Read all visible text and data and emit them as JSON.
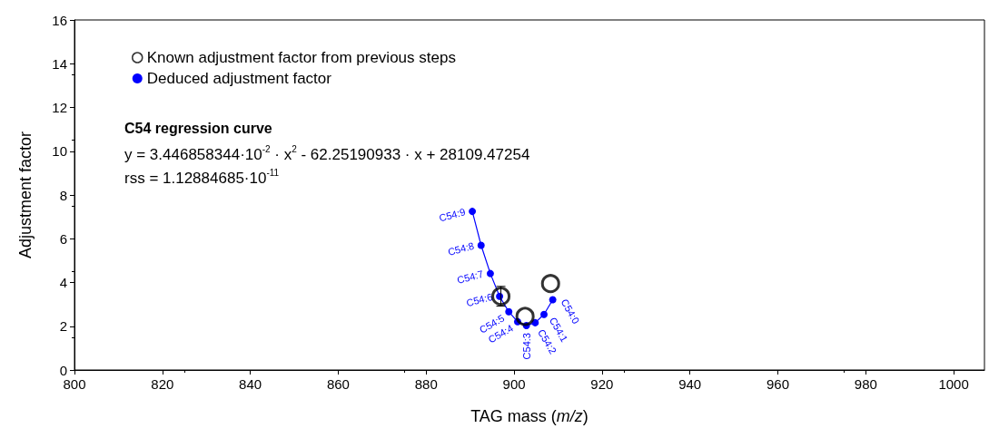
{
  "chart_data": {
    "type": "scatter",
    "xlabel": "TAG mass (m/z)",
    "ylabel": "Adjustment factor",
    "xlim": [
      800,
      1007
    ],
    "xticks": [
      800,
      820,
      840,
      860,
      880,
      900,
      920,
      940,
      960,
      980,
      1000
    ],
    "ylim": [
      0,
      16
    ],
    "yticks": [
      0,
      2,
      4,
      6,
      8,
      10,
      12,
      14,
      16
    ],
    "grid": false,
    "legend": "top left",
    "annotations": [
      "C54 regression curve",
      "y = 3.446858344·10$^{-2}$ · x$^{2}$ - 62.25190933 · x + 28109.47254",
      "rss = 1.12884685·10$^{-11}$"
    ],
    "series": [
      {
        "name": "Known adjustment factor from previous steps",
        "marker": "circle",
        "color": "#000000",
        "x": [
          897.0,
          902.5,
          908.3
        ],
        "values": [
          3.37,
          2.45,
          3.95
        ],
        "errors": [
          0.45,
          null,
          null
        ]
      },
      {
        "name": "Deduced adjustment factor",
        "type": "line",
        "marker": "circle",
        "color": "#0000ff",
        "x": [
          890.5,
          892.5,
          894.6,
          896.7,
          898.8,
          900.8,
          902.8,
          904.8,
          906.8,
          908.8
        ],
        "values": [
          7.25,
          5.7,
          4.41,
          3.37,
          2.66,
          2.21,
          2.03,
          2.16,
          2.54,
          3.21
        ],
        "value_labels": [
          "C54:9",
          "C54:8",
          "C54:7",
          "C54:6",
          "C54:5",
          "C54:4",
          "C54:3",
          "C54:2",
          "C54:1",
          "C54:0"
        ]
      }
    ]
  }
}
